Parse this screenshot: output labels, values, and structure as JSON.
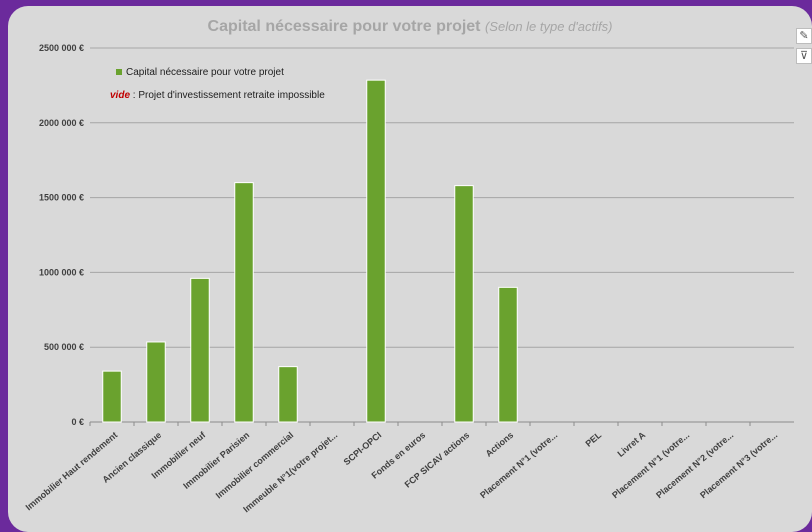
{
  "colors": {
    "bar": "#6aa22e",
    "background": "#d9d9d9",
    "grid": "#a6a6a6",
    "frame": "#6b2a9c"
  },
  "icons": [
    "brush-icon",
    "filter-icon"
  ],
  "chart_data": {
    "type": "bar",
    "title": "Capital nécessaire pour votre projet",
    "subtitle": "(Selon le type d'actifs)",
    "legend": {
      "series_label": "Capital nécessaire pour votre projet",
      "note_keyword": "vide",
      "note_text": " : Projet d'investissement retraite impossible",
      "placement": "top-left"
    },
    "categories": [
      "Immobilier Haut rendement",
      "Ancien classique",
      "Immobilier neuf",
      "Immobilier Parisien",
      "Immobilier commercial",
      "Immeuble N°1(votre projet...",
      "SCPI-OPCI",
      "Fonds en euros",
      "FCP SICAV actions",
      "Actions",
      "Placement N°1 (votre...",
      "PEL",
      "Livret A",
      "Placement N°1 (votre...",
      "Placement N°2 (votre...",
      "Placement N°3 (votre..."
    ],
    "series": [
      {
        "name": "Capital nécessaire pour votre projet",
        "values": [
          340000,
          535000,
          960000,
          1600000,
          370000,
          null,
          2285000,
          null,
          1580000,
          900000,
          null,
          null,
          null,
          null,
          null,
          null
        ]
      }
    ],
    "yticks": [
      "0 €",
      "500 000 €",
      "1000 000 €",
      "1500 000 €",
      "2000 000 €",
      "2500 000 €"
    ],
    "ylim": [
      0,
      2500000
    ],
    "grid": true
  }
}
